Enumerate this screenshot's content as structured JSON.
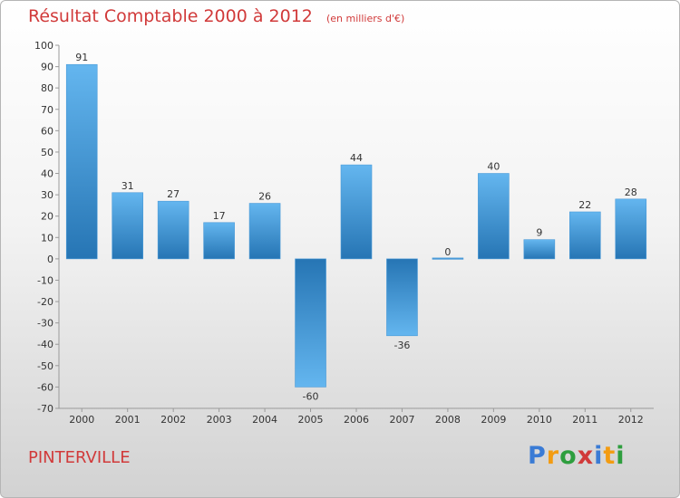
{
  "title": {
    "main": "Résultat Comptable 2000 à 2012",
    "unit": "(en milliers d'€)"
  },
  "commune": "PINTERVILLE",
  "logo": {
    "text": "Proxiti",
    "letters": [
      {
        "char": "P",
        "color": "#3a7bd5"
      },
      {
        "char": "r",
        "color": "#f39c12"
      },
      {
        "char": "o",
        "color": "#2e9e3e"
      },
      {
        "char": "x",
        "color": "#d13a3a"
      },
      {
        "char": "i",
        "color": "#3a7bd5"
      },
      {
        "char": "t",
        "color": "#f39c12"
      },
      {
        "char": "i",
        "color": "#2e9e3e"
      }
    ]
  },
  "colors": {
    "bar_light": "#64b6ef",
    "bar_dark": "#2675b4",
    "title": "#d13a3a"
  },
  "chart_data": {
    "type": "bar",
    "title": "Résultat Comptable 2000 à 2012",
    "ylabel": "(en milliers d'€)",
    "xlabel": "",
    "categories": [
      "2000",
      "2001",
      "2002",
      "2003",
      "2004",
      "2005",
      "2006",
      "2007",
      "2008",
      "2009",
      "2010",
      "2011",
      "2012"
    ],
    "values": [
      91,
      31,
      27,
      17,
      26,
      -60,
      44,
      -36,
      0,
      40,
      9,
      22,
      28
    ],
    "ylim": [
      -70,
      100
    ],
    "yticks": [
      100,
      90,
      80,
      70,
      60,
      50,
      40,
      30,
      20,
      10,
      0,
      -10,
      -20,
      -30,
      -40,
      -50,
      -60,
      -70
    ],
    "grid": false,
    "legend": "none"
  }
}
